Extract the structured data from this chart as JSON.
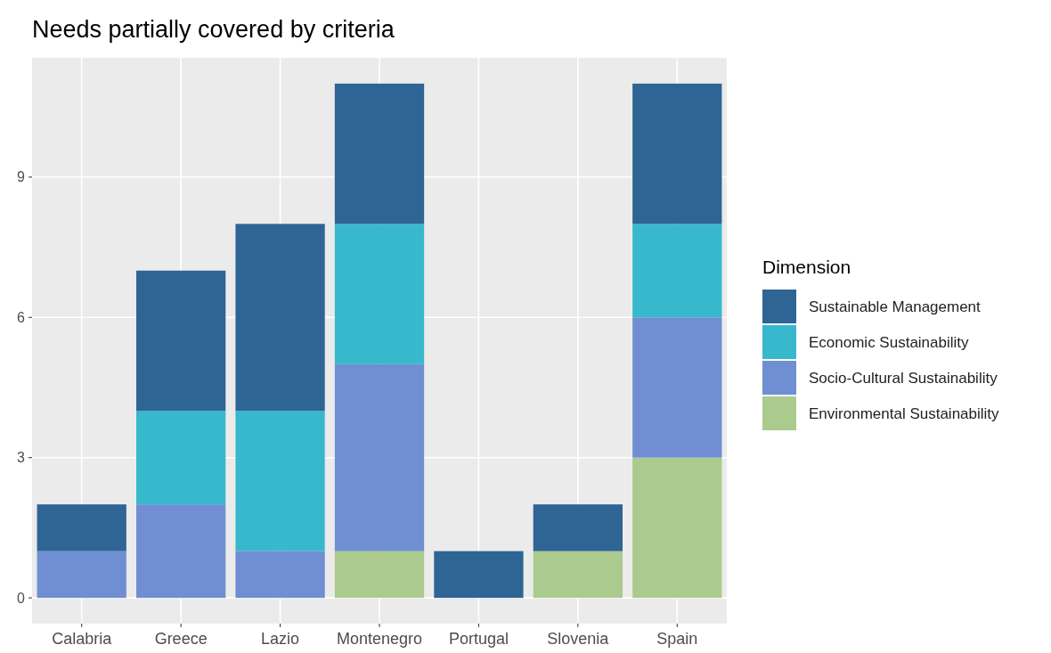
{
  "chart_data": {
    "type": "bar",
    "title": "Needs partially covered by criteria",
    "legend_title": "Dimension",
    "stacked": true,
    "categories": [
      "Calabria",
      "Greece",
      "Lazio",
      "Montenegro",
      "Portugal",
      "Slovenia",
      "Spain"
    ],
    "series": [
      {
        "name": "Environmental Sustainability",
        "color": "#abcb8e",
        "values": [
          0,
          0,
          0,
          1,
          0,
          1,
          3
        ]
      },
      {
        "name": "Socio-Cultural Sustainability",
        "color": "#6f8fd2",
        "values": [
          1,
          2,
          1,
          4,
          0,
          0,
          3
        ]
      },
      {
        "name": "Economic Sustainability",
        "color": "#38b8cc",
        "values": [
          0,
          2,
          3,
          3,
          0,
          0,
          2
        ]
      },
      {
        "name": "Sustainable Management",
        "color": "#2e6594",
        "values": [
          1,
          3,
          4,
          3,
          1,
          1,
          3
        ]
      }
    ],
    "ylim": [
      -0.55,
      11.55
    ],
    "yticks": [
      0,
      3,
      6,
      9
    ],
    "grid": true,
    "legend": "right"
  }
}
